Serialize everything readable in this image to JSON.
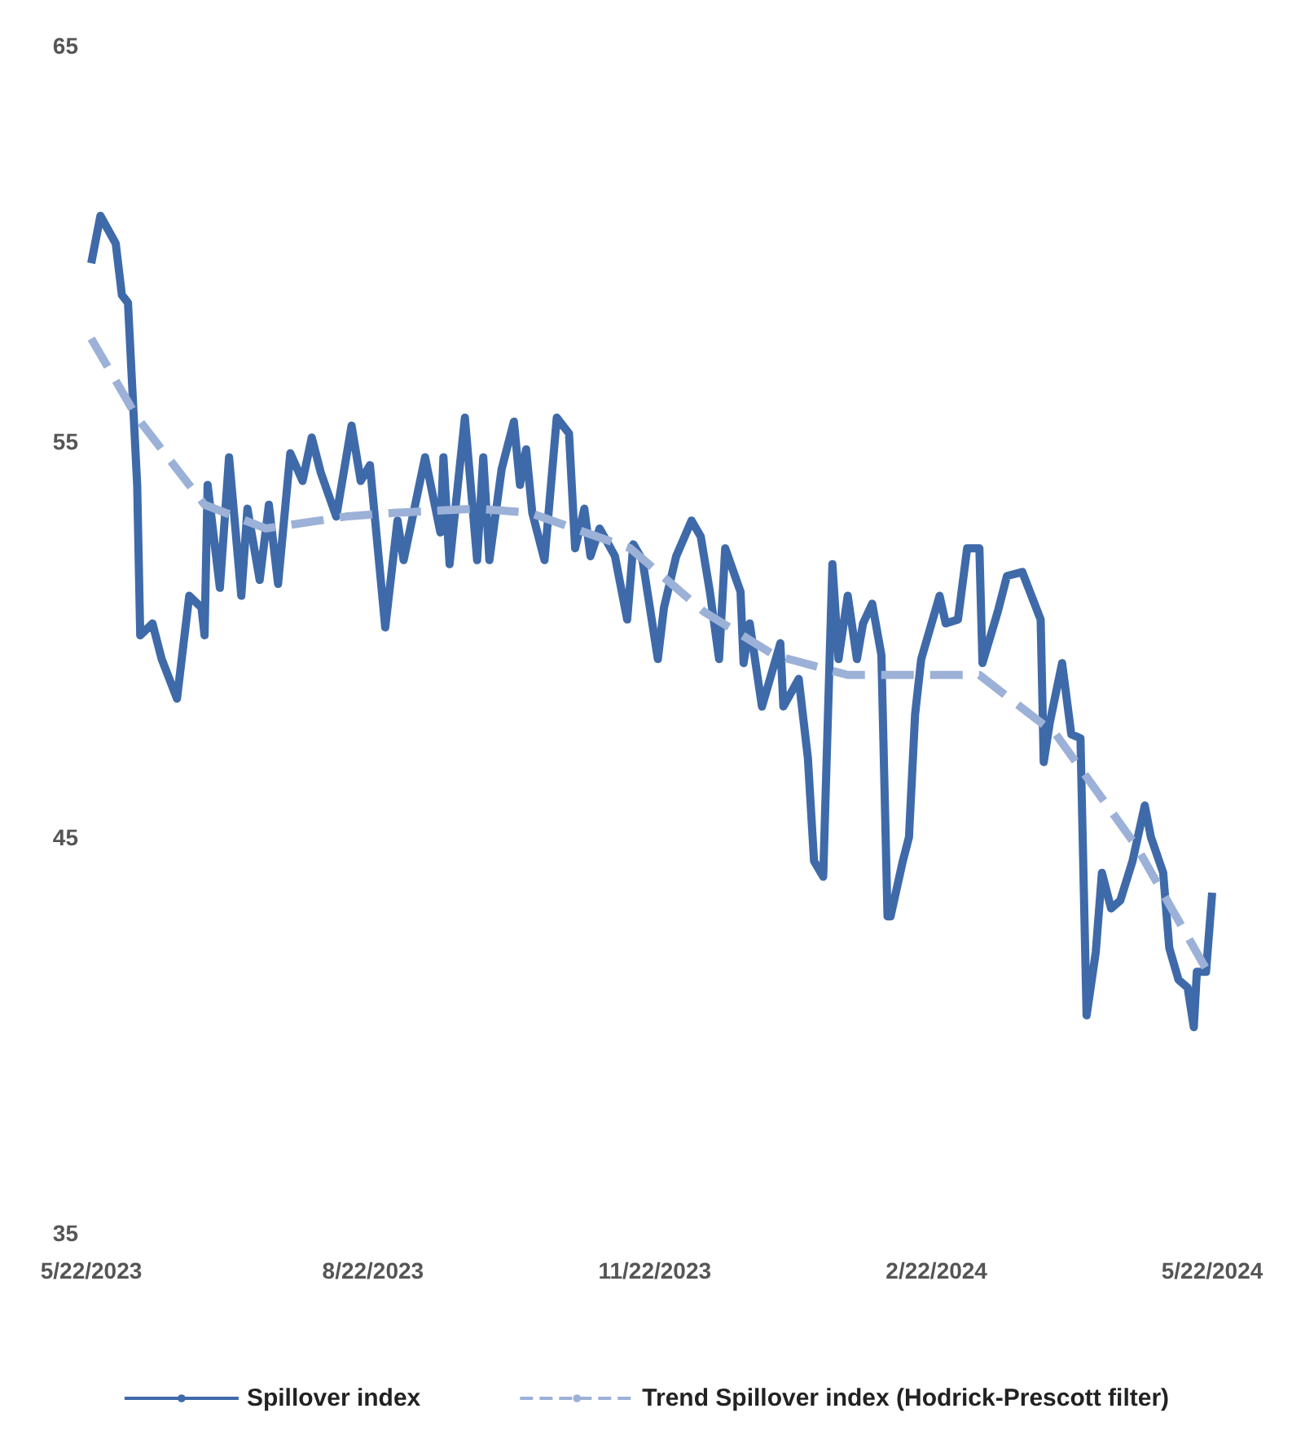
{
  "chart_data": {
    "type": "line",
    "xlim": [
      "2023-05-22",
      "2024-05-22"
    ],
    "xticks": [
      {
        "value": "2023-05-22",
        "label": "5/22/2023"
      },
      {
        "value": "2023-08-22",
        "label": "8/22/2023"
      },
      {
        "value": "2023-11-22",
        "label": "11/22/2023"
      },
      {
        "value": "2024-02-22",
        "label": "2/22/2024"
      },
      {
        "value": "2024-05-22",
        "label": "5/22/2024"
      }
    ],
    "ylim": [
      35,
      65
    ],
    "yticks": [
      35,
      45,
      55,
      65
    ],
    "grid": false,
    "legend": "bottom",
    "marker": "none",
    "series": [
      {
        "name": "Spillover index",
        "color": "#3f6aa9",
        "line_style": "solid",
        "x": [
          "2023-05-22",
          "2023-05-25",
          "2023-05-30",
          "2023-06-01",
          "2023-06-03",
          "2023-06-06",
          "2023-06-07",
          "2023-06-11",
          "2023-06-14",
          "2023-06-19",
          "2023-06-23",
          "2023-06-27",
          "2023-06-28",
          "2023-06-29",
          "2023-07-03",
          "2023-07-06",
          "2023-07-10",
          "2023-07-12",
          "2023-07-16",
          "2023-07-19",
          "2023-07-22",
          "2023-07-26",
          "2023-07-30",
          "2023-08-02",
          "2023-08-05",
          "2023-08-10",
          "2023-08-15",
          "2023-08-18",
          "2023-08-21",
          "2023-08-26",
          "2023-08-30",
          "2023-09-01",
          "2023-09-08",
          "2023-09-13",
          "2023-09-14",
          "2023-09-16",
          "2023-09-21",
          "2023-09-25",
          "2023-09-27",
          "2023-09-29",
          "2023-10-03",
          "2023-10-07",
          "2023-10-09",
          "2023-10-11",
          "2023-10-13",
          "2023-10-17",
          "2023-10-21",
          "2023-10-25",
          "2023-10-27",
          "2023-10-30",
          "2023-11-01",
          "2023-11-04",
          "2023-11-09",
          "2023-11-13",
          "2023-11-15",
          "2023-11-18",
          "2023-11-23",
          "2023-11-25",
          "2023-11-29",
          "2023-12-04",
          "2023-12-07",
          "2023-12-10",
          "2023-12-13",
          "2023-12-15",
          "2023-12-20",
          "2023-12-21",
          "2023-12-23",
          "2023-12-27",
          "2024-01-02",
          "2024-01-03",
          "2024-01-08",
          "2024-01-11",
          "2024-01-13",
          "2024-01-16",
          "2024-01-19",
          "2024-01-21",
          "2024-01-24",
          "2024-01-27",
          "2024-01-29",
          "2024-02-01",
          "2024-02-04",
          "2024-02-06",
          "2024-02-07",
          "2024-02-11",
          "2024-02-13",
          "2024-02-15",
          "2024-02-17",
          "2024-02-23",
          "2024-02-25",
          "2024-02-29",
          "2024-03-03",
          "2024-03-07",
          "2024-03-08",
          "2024-03-13",
          "2024-03-16",
          "2024-03-21",
          "2024-03-27",
          "2024-03-28",
          "2024-03-30",
          "2024-04-03",
          "2024-04-06",
          "2024-04-09",
          "2024-04-11",
          "2024-04-14",
          "2024-04-16",
          "2024-04-19",
          "2024-04-22",
          "2024-04-26",
          "2024-04-30",
          "2024-05-02",
          "2024-05-06",
          "2024-05-08",
          "2024-05-11",
          "2024-05-14",
          "2024-05-16",
          "2024-05-17",
          "2024-05-20",
          "2024-05-22"
        ],
        "values": [
          59.5,
          60.7,
          60.0,
          58.7,
          58.5,
          53.9,
          50.1,
          50.4,
          49.5,
          48.5,
          51.1,
          50.8,
          50.1,
          53.9,
          51.3,
          54.6,
          51.1,
          53.3,
          51.5,
          53.4,
          51.4,
          54.7,
          54.0,
          55.1,
          54.2,
          53.1,
          55.4,
          54.0,
          54.4,
          50.3,
          53.0,
          52.0,
          54.6,
          52.7,
          54.6,
          51.9,
          55.6,
          52.0,
          54.6,
          52.0,
          54.3,
          55.5,
          53.9,
          54.8,
          53.2,
          52.0,
          55.6,
          55.2,
          52.3,
          53.3,
          52.1,
          52.8,
          52.1,
          50.5,
          52.4,
          52.0,
          49.5,
          50.8,
          52.1,
          53.0,
          52.6,
          51.2,
          49.5,
          52.3,
          51.2,
          49.4,
          50.4,
          48.3,
          49.9,
          48.3,
          49.0,
          47.0,
          44.4,
          44.0,
          51.9,
          49.5,
          51.1,
          49.5,
          50.4,
          50.9,
          49.6,
          43.0,
          43.0,
          44.4,
          45.0,
          48.1,
          49.5,
          51.1,
          50.4,
          50.5,
          52.3,
          52.3,
          49.4,
          50.7,
          51.6,
          51.7,
          50.5,
          46.9,
          47.9,
          49.4,
          47.6,
          47.5,
          40.5,
          42.1,
          44.1,
          43.2,
          43.4,
          44.4,
          45.8,
          45.0,
          44.1,
          42.2,
          41.4,
          41.2,
          40.2,
          41.6,
          41.6,
          43.6
        ]
      },
      {
        "name": "Trend Spillover index (Hodrick-Prescott filter)",
        "color": "#9cb1d7",
        "line_style": "dashed",
        "x": [
          "2023-05-22",
          "2023-06-06",
          "2023-06-28",
          "2023-07-18",
          "2023-08-13",
          "2023-08-30",
          "2023-09-25",
          "2023-10-12",
          "2023-11-14",
          "2023-12-08",
          "2023-12-31",
          "2024-01-24",
          "2024-03-07",
          "2024-04-01",
          "2024-04-27",
          "2024-05-22"
        ],
        "values": [
          57.6,
          55.6,
          53.4,
          52.8,
          53.1,
          53.2,
          53.3,
          53.2,
          52.3,
          50.7,
          49.6,
          49.1,
          49.1,
          47.6,
          44.8,
          41.4
        ]
      }
    ]
  }
}
